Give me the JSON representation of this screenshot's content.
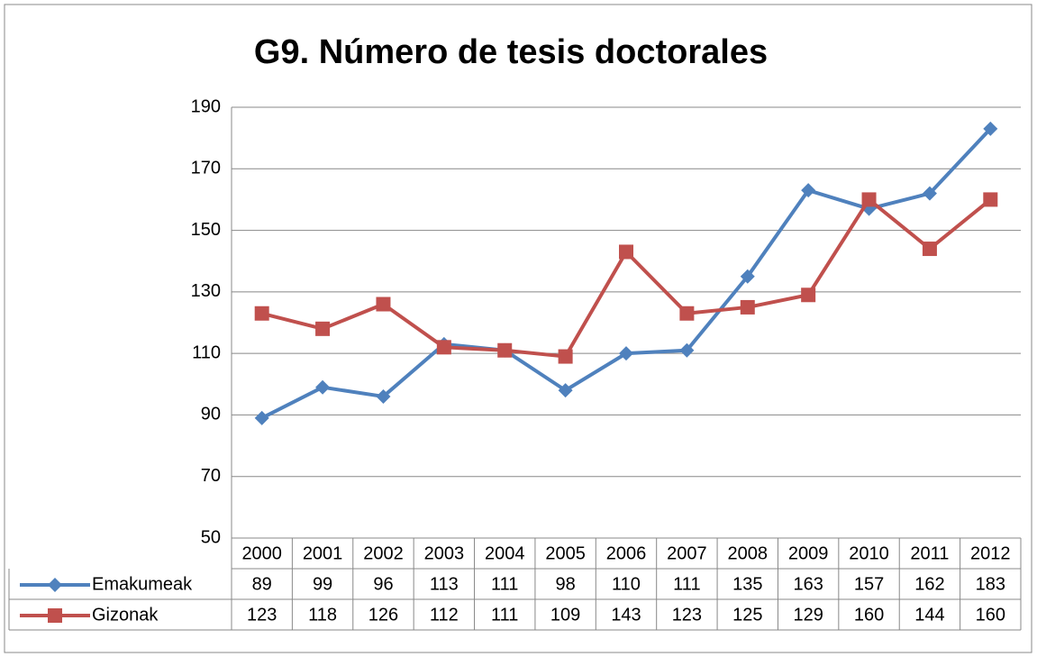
{
  "chart_data": {
    "type": "line",
    "title": "G9. Número de tesis doctorales",
    "categories": [
      "2000",
      "2001",
      "2002",
      "2003",
      "2004",
      "2005",
      "2006",
      "2007",
      "2008",
      "2009",
      "2010",
      "2011",
      "2012"
    ],
    "series": [
      {
        "name": "Emakumeak",
        "color": "#4f81bd",
        "marker": "diamond",
        "values": [
          89,
          99,
          96,
          113,
          111,
          98,
          110,
          111,
          135,
          163,
          157,
          162,
          183
        ]
      },
      {
        "name": "Gizonak",
        "color": "#c0504d",
        "marker": "square",
        "values": [
          123,
          118,
          126,
          112,
          111,
          109,
          143,
          123,
          125,
          129,
          160,
          144,
          160
        ]
      }
    ],
    "ylim": [
      50,
      190
    ],
    "yticks": [
      50,
      70,
      90,
      110,
      130,
      150,
      170,
      190
    ],
    "grid": true,
    "data_table": true
  }
}
